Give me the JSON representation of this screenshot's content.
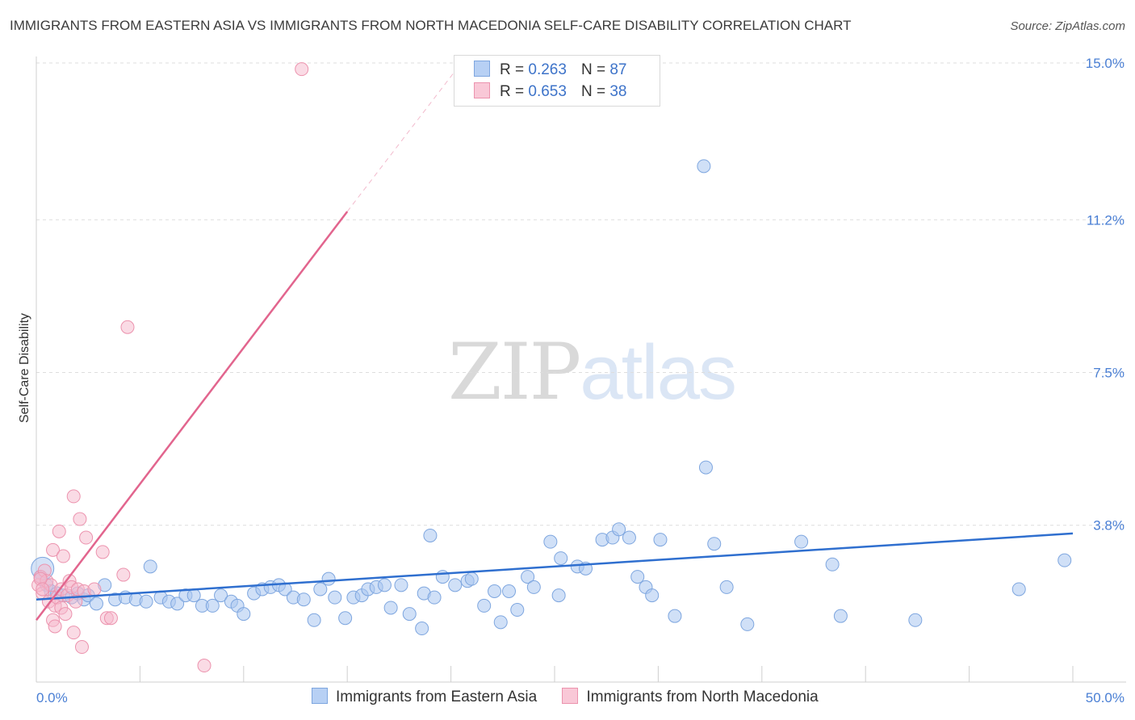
{
  "title": "IMMIGRANTS FROM EASTERN ASIA VS IMMIGRANTS FROM NORTH MACEDONIA SELF-CARE DISABILITY CORRELATION CHART",
  "source": "Source: ZipAtlas.com",
  "watermark": {
    "zip": "ZIP",
    "atlas": "atlas"
  },
  "colors": {
    "blue_fill": "#a9c6f0",
    "blue_stroke": "#7ea6df",
    "blue_line": "#2f6fcf",
    "pink_fill": "#f6b8cb",
    "pink_stroke": "#ec93ae",
    "pink_line": "#e2658e",
    "grid": "#dddddd",
    "axis": "#cfcfcf",
    "tick_text": "#4a7fd4"
  },
  "legend": {
    "rows": [
      {
        "r_label": "R =",
        "r_value": "0.263",
        "n_label": "N =",
        "n_value": "87"
      },
      {
        "r_label": "R =",
        "r_value": "0.653",
        "n_label": "N =",
        "n_value": "38"
      }
    ]
  },
  "bottom_legend": [
    "Immigrants from Eastern Asia",
    "Immigrants from North Macedonia"
  ],
  "chart_data": {
    "type": "scatter",
    "title": "IMMIGRANTS FROM EASTERN ASIA VS IMMIGRANTS FROM NORTH MACEDONIA SELF-CARE DISABILITY CORRELATION CHART",
    "xlabel": "",
    "ylabel": "Self-Care Disability",
    "xlim": [
      0,
      50
    ],
    "ylim": [
      0,
      15.0
    ],
    "x_tick_labels": [
      "0.0%",
      "50.0%"
    ],
    "y_ticks": [
      3.8,
      7.5,
      11.2,
      15.0
    ],
    "y_tick_labels": [
      "3.8%",
      "7.5%",
      "11.2%",
      "15.0%"
    ],
    "grid": true,
    "series": [
      {
        "name": "Immigrants from Eastern Asia",
        "R": 0.263,
        "N": 87,
        "trend": {
          "x": [
            0,
            50
          ],
          "y": [
            2.0,
            3.6
          ]
        },
        "points": [
          [
            0.2,
            2.55
          ],
          [
            0.5,
            2.35
          ],
          [
            0.7,
            2.2
          ],
          [
            1.0,
            2.15
          ],
          [
            1.3,
            2.1
          ],
          [
            1.7,
            2.05
          ],
          [
            2.0,
            2.15
          ],
          [
            2.3,
            2.0
          ],
          [
            2.5,
            2.1
          ],
          [
            2.9,
            1.9
          ],
          [
            3.3,
            2.35
          ],
          [
            3.8,
            2.0
          ],
          [
            4.3,
            2.05
          ],
          [
            4.8,
            2.0
          ],
          [
            5.3,
            1.95
          ],
          [
            5.5,
            2.8
          ],
          [
            6.0,
            2.05
          ],
          [
            6.4,
            1.95
          ],
          [
            6.8,
            1.9
          ],
          [
            7.2,
            2.1
          ],
          [
            7.6,
            2.1
          ],
          [
            8.0,
            1.85
          ],
          [
            8.5,
            1.85
          ],
          [
            8.9,
            2.1
          ],
          [
            9.4,
            1.95
          ],
          [
            9.7,
            1.85
          ],
          [
            10.0,
            1.65
          ],
          [
            10.5,
            2.15
          ],
          [
            10.9,
            2.25
          ],
          [
            11.3,
            2.3
          ],
          [
            11.7,
            2.35
          ],
          [
            12.0,
            2.25
          ],
          [
            12.4,
            2.05
          ],
          [
            12.9,
            2.0
          ],
          [
            13.4,
            1.5
          ],
          [
            13.7,
            2.25
          ],
          [
            14.1,
            2.5
          ],
          [
            14.4,
            2.05
          ],
          [
            14.9,
            1.55
          ],
          [
            15.3,
            2.05
          ],
          [
            15.7,
            2.1
          ],
          [
            16.0,
            2.25
          ],
          [
            16.4,
            2.3
          ],
          [
            16.8,
            2.35
          ],
          [
            17.1,
            1.8
          ],
          [
            17.6,
            2.35
          ],
          [
            18.0,
            1.65
          ],
          [
            18.6,
            1.3
          ],
          [
            18.7,
            2.15
          ],
          [
            19.2,
            2.05
          ],
          [
            19.0,
            3.55
          ],
          [
            19.6,
            2.55
          ],
          [
            20.2,
            2.35
          ],
          [
            20.8,
            2.45
          ],
          [
            21.0,
            2.5
          ],
          [
            21.6,
            1.85
          ],
          [
            22.1,
            2.2
          ],
          [
            22.4,
            1.45
          ],
          [
            22.8,
            2.2
          ],
          [
            23.2,
            1.75
          ],
          [
            23.7,
            2.55
          ],
          [
            24.0,
            2.3
          ],
          [
            24.8,
            3.4
          ],
          [
            25.2,
            2.1
          ],
          [
            25.3,
            3.0
          ],
          [
            26.1,
            2.8
          ],
          [
            26.5,
            2.75
          ],
          [
            27.3,
            3.45
          ],
          [
            27.8,
            3.5
          ],
          [
            28.1,
            3.7
          ],
          [
            28.6,
            3.5
          ],
          [
            29.0,
            2.55
          ],
          [
            29.4,
            2.3
          ],
          [
            29.7,
            2.1
          ],
          [
            30.1,
            3.45
          ],
          [
            30.8,
            1.6
          ],
          [
            32.2,
            12.5
          ],
          [
            32.3,
            5.2
          ],
          [
            32.7,
            3.35
          ],
          [
            33.3,
            2.3
          ],
          [
            34.3,
            1.4
          ],
          [
            36.9,
            3.4
          ],
          [
            38.4,
            2.85
          ],
          [
            38.8,
            1.6
          ],
          [
            42.4,
            1.5
          ],
          [
            47.4,
            2.25
          ],
          [
            49.6,
            2.95
          ]
        ]
      },
      {
        "name": "Immigrants from North Macedonia",
        "R": 0.653,
        "N": 38,
        "trend": {
          "x": [
            0,
            15
          ],
          "y": [
            1.5,
            11.4
          ]
        },
        "trend_dashed": {
          "x": [
            15,
            20.5
          ],
          "y": [
            11.4,
            15.0
          ]
        },
        "points": [
          [
            0.1,
            2.35
          ],
          [
            0.2,
            2.55
          ],
          [
            0.3,
            2.15
          ],
          [
            0.4,
            2.7
          ],
          [
            0.5,
            2.45
          ],
          [
            0.6,
            1.95
          ],
          [
            0.7,
            2.35
          ],
          [
            0.8,
            3.2
          ],
          [
            0.8,
            1.5
          ],
          [
            0.9,
            1.85
          ],
          [
            0.9,
            1.35
          ],
          [
            1.0,
            2.05
          ],
          [
            1.1,
            3.65
          ],
          [
            1.2,
            1.8
          ],
          [
            1.2,
            2.25
          ],
          [
            1.3,
            3.05
          ],
          [
            1.4,
            1.65
          ],
          [
            1.5,
            2.1
          ],
          [
            1.6,
            2.45
          ],
          [
            1.7,
            2.3
          ],
          [
            1.8,
            4.5
          ],
          [
            1.8,
            1.2
          ],
          [
            1.9,
            1.95
          ],
          [
            2.0,
            2.25
          ],
          [
            2.1,
            3.95
          ],
          [
            2.2,
            0.85
          ],
          [
            2.3,
            2.2
          ],
          [
            2.4,
            3.5
          ],
          [
            2.8,
            2.25
          ],
          [
            3.2,
            3.15
          ],
          [
            3.4,
            1.55
          ],
          [
            3.6,
            1.55
          ],
          [
            4.2,
            2.6
          ],
          [
            4.4,
            8.6
          ],
          [
            8.1,
            0.4
          ],
          [
            12.8,
            14.85
          ],
          [
            0.2,
            2.5
          ],
          [
            0.3,
            2.25
          ]
        ]
      }
    ]
  }
}
